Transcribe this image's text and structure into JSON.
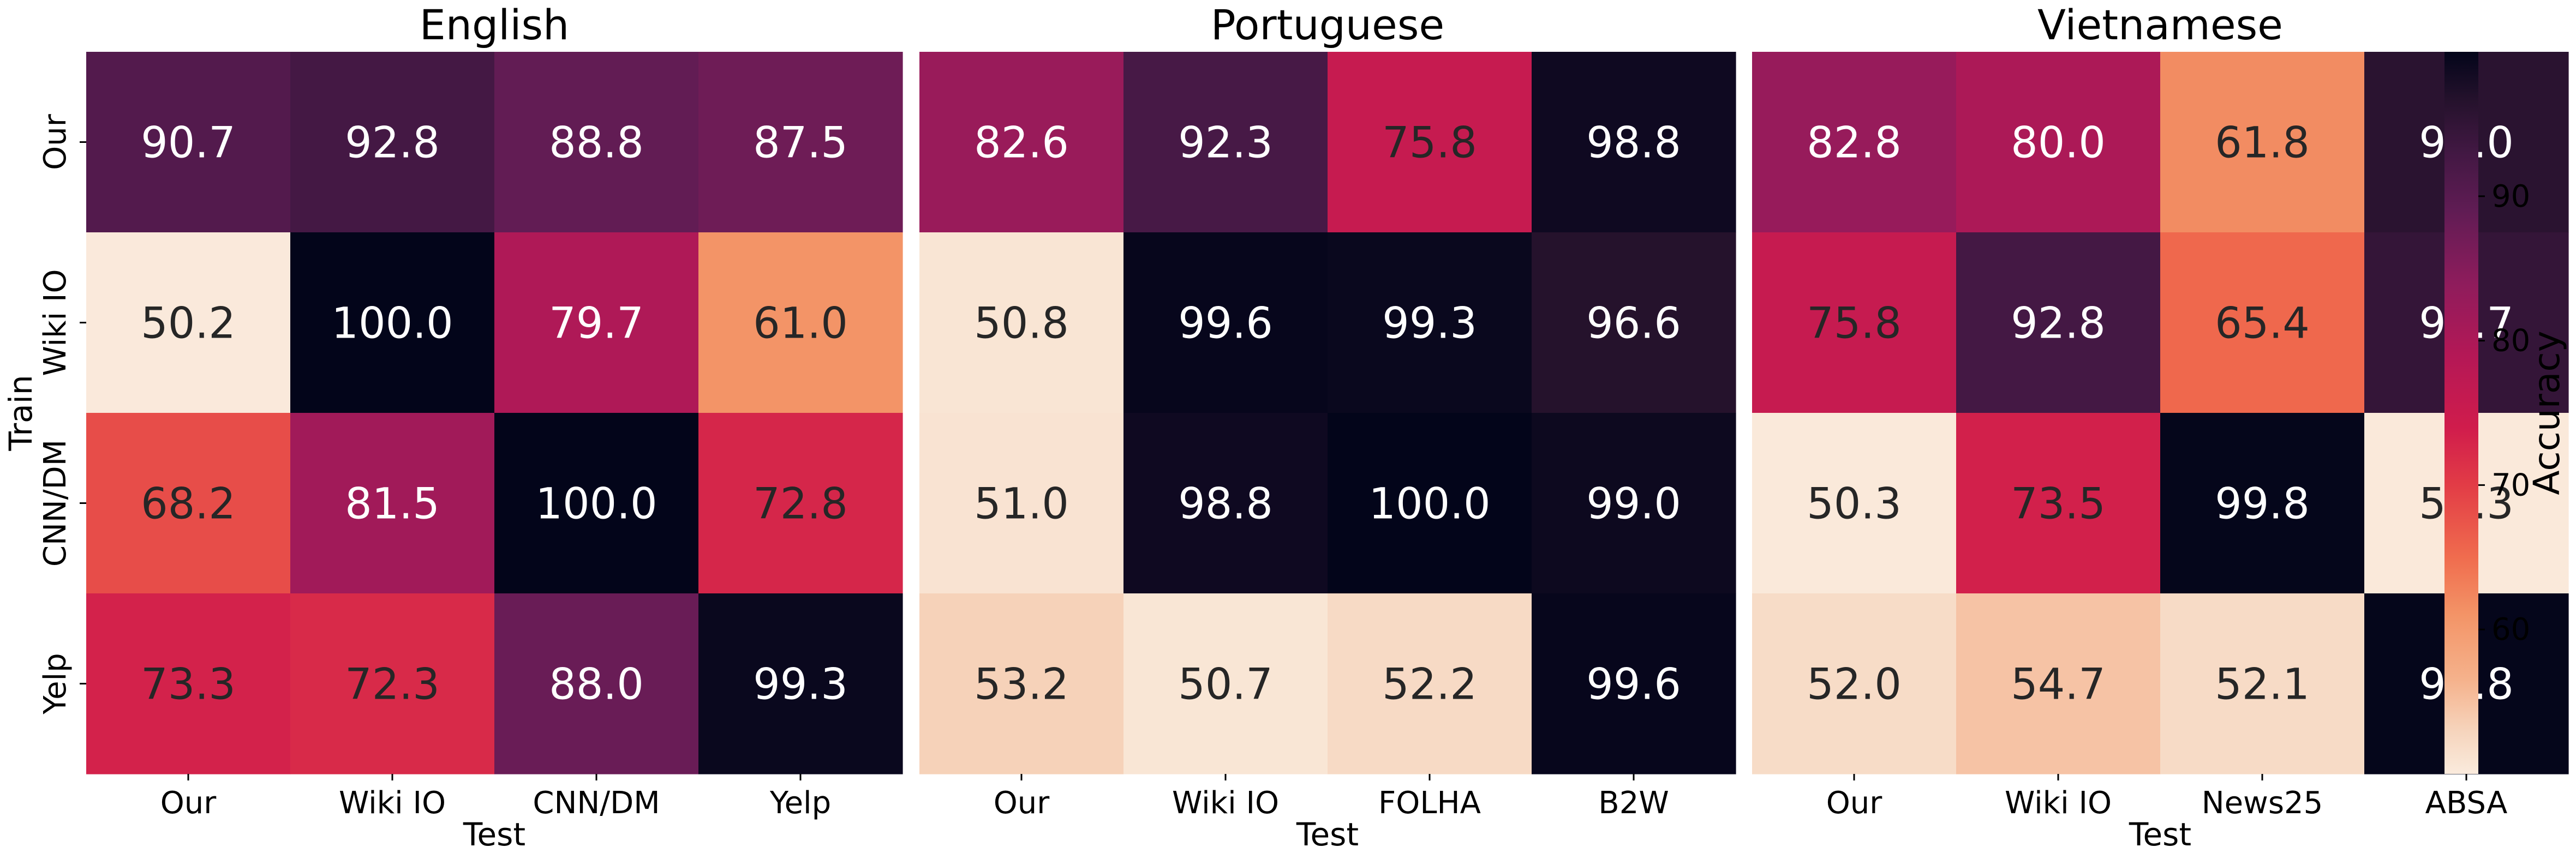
{
  "chart_data": {
    "type": "heatmap",
    "colormap": "rocket_r",
    "value_range": [
      50,
      100
    ],
    "ylabel": "Train",
    "row_labels": [
      "Our",
      "Wiki IO",
      "CNN/DM",
      "Yelp"
    ],
    "colorbar": {
      "label": "Accuracy",
      "ticks": [
        60,
        70,
        80,
        90
      ]
    },
    "panels": [
      {
        "title": "English",
        "xlabel": "Test",
        "columns": [
          "Our",
          "Wiki IO",
          "CNN/DM",
          "Yelp"
        ],
        "values": [
          [
            90.7,
            92.8,
            88.8,
            87.5
          ],
          [
            50.2,
            100.0,
            79.7,
            61.0
          ],
          [
            68.2,
            81.5,
            100.0,
            72.8
          ],
          [
            73.3,
            72.3,
            88.0,
            99.3
          ]
        ]
      },
      {
        "title": "Portuguese",
        "xlabel": "Test",
        "columns": [
          "Our",
          "Wiki IO",
          "FOLHA",
          "B2W"
        ],
        "values": [
          [
            82.6,
            92.3,
            75.8,
            98.8
          ],
          [
            50.8,
            99.6,
            99.3,
            96.6
          ],
          [
            51.0,
            98.8,
            100.0,
            99.0
          ],
          [
            53.2,
            50.7,
            52.2,
            99.6
          ]
        ]
      },
      {
        "title": "Vietnamese",
        "xlabel": "Test",
        "columns": [
          "Our",
          "Wiki IO",
          "News25",
          "ABSA"
        ],
        "values": [
          [
            82.8,
            80.0,
            61.8,
            96.0
          ],
          [
            75.8,
            92.8,
            65.4,
            94.7
          ],
          [
            50.3,
            73.5,
            99.8,
            50.3
          ],
          [
            52.0,
            54.7,
            52.1,
            99.8
          ]
        ]
      }
    ]
  }
}
